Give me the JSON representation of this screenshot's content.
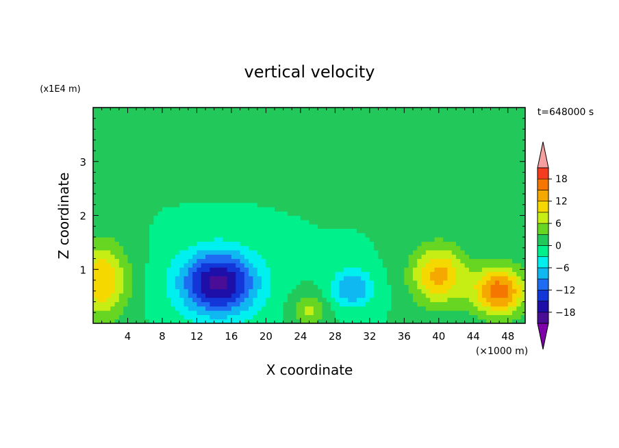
{
  "chart_data": {
    "type": "heatmap",
    "title": "vertical velocity",
    "xlabel": "X coordinate",
    "ylabel": "Z coordinate",
    "x_unit": "(×1000 m)",
    "y_unit": "(x1E4 m)",
    "time_label": "t=648000 s",
    "xlim": [
      0,
      50
    ],
    "ylim": [
      0,
      4
    ],
    "xticks": [
      4,
      8,
      12,
      16,
      20,
      24,
      28,
      32,
      36,
      40,
      44,
      48
    ],
    "yticks": [
      1,
      2,
      3
    ],
    "colorbar": {
      "levels": [
        -21,
        -18,
        -15,
        -12,
        -9,
        -6,
        -3,
        0,
        3,
        6,
        9,
        12,
        15,
        18,
        21
      ],
      "labels": [
        -18,
        -12,
        -6,
        0,
        6,
        12,
        18
      ],
      "colors": [
        "#7d00a8",
        "#4a0d96",
        "#1d0fa8",
        "#1236d8",
        "#1e6cf2",
        "#10b8f2",
        "#00f0f0",
        "#00f08c",
        "#22c85a",
        "#66d623",
        "#c6ee14",
        "#f5d800",
        "#f5a800",
        "#f57600",
        "#f53c1e",
        "#e81b1b",
        "#f5a0a0"
      ],
      "extend": "both"
    },
    "features": [
      {
        "x": 14.5,
        "z": 0.75,
        "w": -19,
        "sx": 4.5,
        "sz": 0.6
      },
      {
        "x": 1.0,
        "z": 0.8,
        "w": 12,
        "sx": 3.0,
        "sz": 0.7
      },
      {
        "x": 47.0,
        "z": 0.6,
        "w": 17,
        "sx": 3.0,
        "sz": 0.45
      },
      {
        "x": 40.0,
        "z": 0.9,
        "w": 13,
        "sx": 3.2,
        "sz": 0.55
      },
      {
        "x": 30.0,
        "z": 0.65,
        "w": -9,
        "sx": 2.5,
        "sz": 0.35
      },
      {
        "x": 25.0,
        "z": 0.25,
        "w": 7,
        "sx": 2.0,
        "sz": 0.3
      }
    ]
  }
}
